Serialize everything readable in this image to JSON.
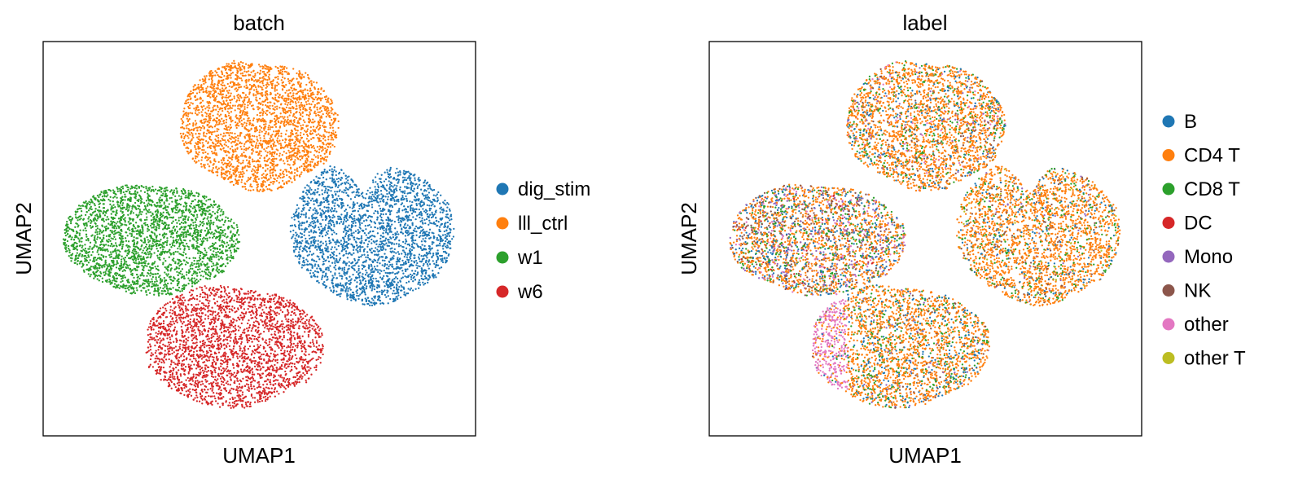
{
  "chart_data": [
    {
      "type": "scatter",
      "title": "batch",
      "xlabel": "UMAP1",
      "ylabel": "UMAP2",
      "grid": false,
      "ticks": false,
      "legend_position": "right",
      "legend": [
        {
          "name": "dig_stim",
          "color": "#1f77b4"
        },
        {
          "name": "lll_ctrl",
          "color": "#ff7f0e"
        },
        {
          "name": "w1",
          "color": "#2ca02c"
        },
        {
          "name": "w6",
          "color": "#d62728"
        }
      ],
      "clusters": [
        {
          "name": "lll_ctrl",
          "location": "top",
          "color": "#ff7f0e",
          "composition": {
            "lll_ctrl": 1.0
          }
        },
        {
          "name": "w1",
          "location": "left",
          "color": "#2ca02c",
          "composition": {
            "w1": 1.0
          }
        },
        {
          "name": "dig_stim",
          "location": "right",
          "color": "#1f77b4",
          "composition": {
            "dig_stim": 1.0
          }
        },
        {
          "name": "w6",
          "location": "bottom",
          "color": "#d62728",
          "composition": {
            "w6": 1.0
          }
        }
      ]
    },
    {
      "type": "scatter",
      "title": "label",
      "xlabel": "UMAP1",
      "ylabel": "UMAP2",
      "grid": false,
      "ticks": false,
      "legend_position": "right",
      "legend": [
        {
          "name": "B",
          "color": "#1f77b4"
        },
        {
          "name": "CD4 T",
          "color": "#ff7f0e"
        },
        {
          "name": "CD8 T",
          "color": "#2ca02c"
        },
        {
          "name": "DC",
          "color": "#d62728"
        },
        {
          "name": "Mono",
          "color": "#9467bd"
        },
        {
          "name": "NK",
          "color": "#8c564b"
        },
        {
          "name": "other",
          "color": "#e377c2"
        },
        {
          "name": "other T",
          "color": "#bcbd22"
        }
      ],
      "clusters": [
        {
          "location": "top",
          "composition": {
            "CD4 T": 0.7,
            "CD8 T": 0.12,
            "B": 0.08,
            "NK": 0.04,
            "Mono": 0.03,
            "other": 0.03
          }
        },
        {
          "location": "left",
          "composition": {
            "CD4 T": 0.45,
            "CD8 T": 0.15,
            "B": 0.15,
            "NK": 0.1,
            "Mono": 0.08,
            "other": 0.05,
            "DC": 0.02
          }
        },
        {
          "location": "right",
          "composition": {
            "CD4 T": 0.74,
            "CD8 T": 0.11,
            "B": 0.07,
            "NK": 0.04,
            "Mono": 0.02,
            "other T": 0.02
          }
        },
        {
          "location": "bottom",
          "composition": {
            "CD4 T": 0.62,
            "CD8 T": 0.14,
            "B": 0.12,
            "other": 0.07,
            "NK": 0.03,
            "Mono": 0.02
          }
        }
      ]
    }
  ]
}
